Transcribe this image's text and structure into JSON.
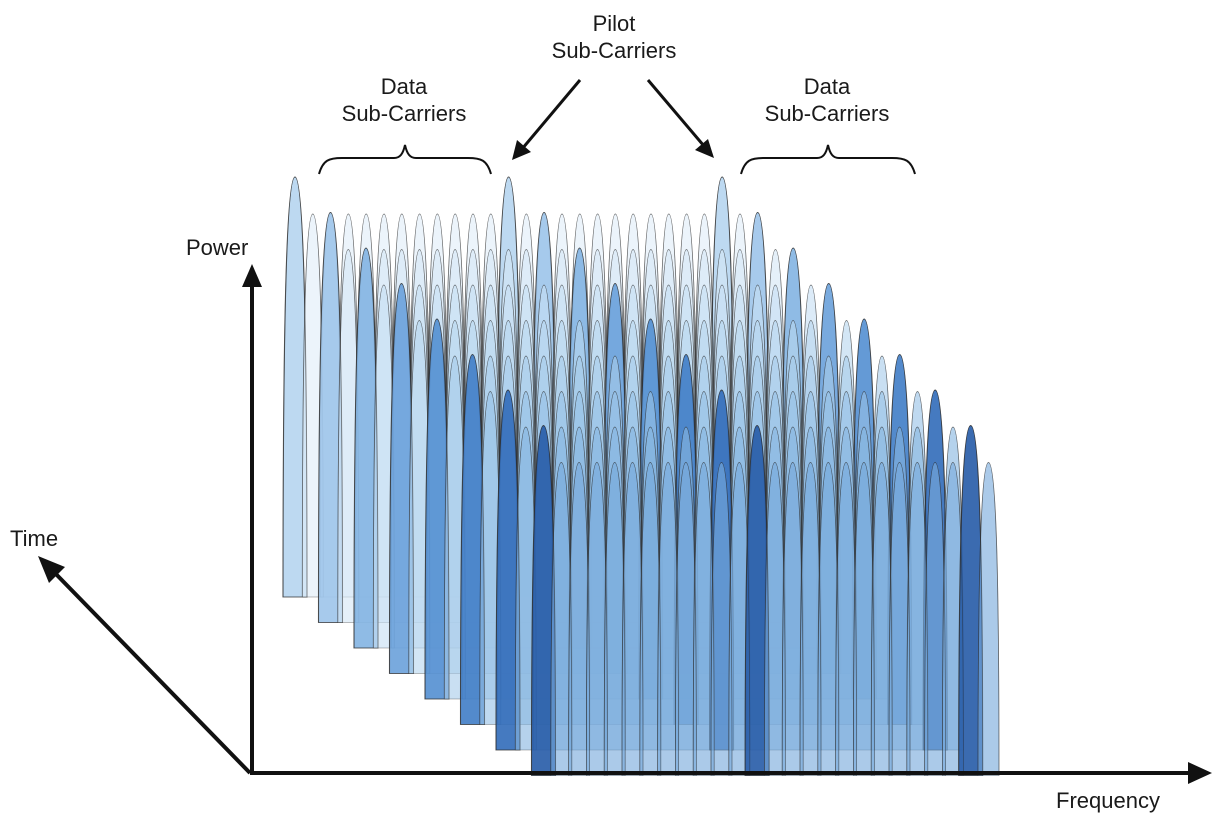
{
  "labels": {
    "pilot": [
      "Pilot",
      "Sub-Carriers"
    ],
    "data_left": [
      "Data",
      "Sub-Carriers"
    ],
    "data_right": [
      "Data",
      "Sub-Carriers"
    ],
    "power_axis": "Power",
    "time_axis": "Time",
    "frequency_axis": "Frequency"
  },
  "style": {
    "pilot_colors": [
      "#b7d6f0",
      "#9fc6ea",
      "#86b5e3",
      "#6ea3db",
      "#5791d2",
      "#4480c8",
      "#356fbb",
      "#2a5ea9"
    ],
    "data_colors": [
      "#e1eef9",
      "#d5e7f6",
      "#c7dff3",
      "#b8d6ef",
      "#a8ccea",
      "#98c1e6",
      "#88b6e0",
      "#78aadb"
    ],
    "outline_color": "#2b2b2b",
    "axis_color": "#111111"
  },
  "diagram": {
    "time_layers": 8,
    "subcarriers_per_layer": 26,
    "pilot_subcarrier_indexes": [
      0,
      12,
      24
    ]
  }
}
